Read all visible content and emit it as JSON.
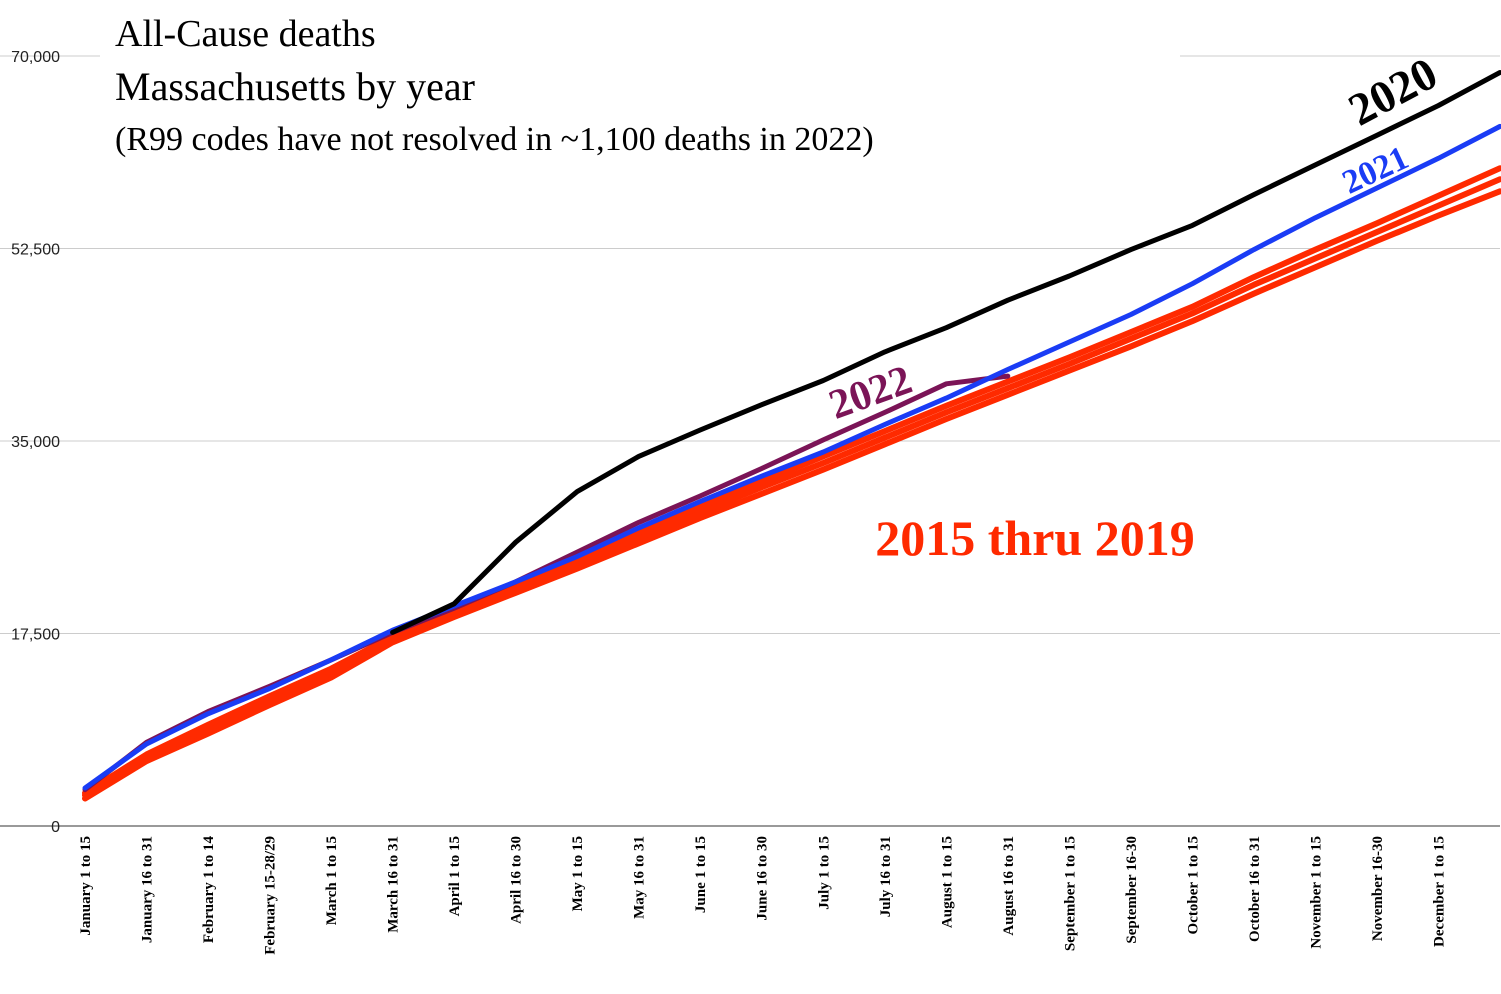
{
  "chart_data": {
    "type": "line",
    "title": "All-Cause deaths",
    "subtitle": "Massachusetts by year",
    "note": "(R99 codes have not resolved in ~1,100 deaths in 2022)",
    "annotation": "2015 thru 2019",
    "categories": [
      "January 1 to 15",
      "January 16 to 31",
      "February 1 to 14",
      "February 15-28/29",
      "March 1 to 15",
      "March 16 to 31",
      "April 1 to 15",
      "April 16 to 30",
      "May 1 to 15",
      "May 16 to 31",
      "June 1 to 15",
      "June 16 to 30",
      "July 1 to 15",
      "July 16 to 31",
      "August 1 to 15",
      "August 16 to 31",
      "September 1 to 15",
      "September 16-30",
      "October 1 to 15",
      "October 16 to 31",
      "November 1 to 15",
      "November 16-30",
      "December 1 to 15",
      null
    ],
    "ylim": [
      0,
      70000
    ],
    "yticks": [
      0,
      {
        "value": 17500,
        "label": "17,500"
      },
      {
        "value": 35000,
        "label": "35,000"
      },
      {
        "value": 52500,
        "label": "52,500"
      },
      {
        "value": 70000,
        "label": "70,000"
      }
    ],
    "grid": true,
    "series": [
      {
        "color": "#ff2a00",
        "values": [
          2500,
          5900,
          8400,
          11000,
          13500,
          16700,
          19000,
          21200,
          23400,
          25700,
          28000,
          30200,
          32400,
          34700,
          37000,
          39200,
          41400,
          43600,
          45900,
          48400,
          50800,
          53200,
          55500,
          57700
        ]
      },
      {
        "color": "#ff2a00",
        "values": [
          2800,
          6300,
          8800,
          11400,
          13900,
          17000,
          19400,
          21600,
          23900,
          26200,
          28500,
          30800,
          33000,
          35300,
          37600,
          39800,
          42000,
          44300,
          46600,
          49200,
          51600,
          54000,
          56400,
          58800
        ]
      },
      {
        "color": "#ff2a00",
        "values": [
          3000,
          6500,
          9200,
          11800,
          14300,
          17200,
          19700,
          22000,
          24300,
          26700,
          29000,
          31300,
          33600,
          35900,
          38200,
          40400,
          42600,
          44900,
          47200,
          49900,
          52400,
          54800,
          57300,
          59800
        ]
      },
      {
        "name": "2022",
        "color": "#7b1457",
        "values": [
          3300,
          7600,
          10400,
          12700,
          15100,
          17600,
          19800,
          22200,
          24900,
          27600,
          30000,
          32500,
          35100,
          37600,
          40200,
          40900,
          null,
          null,
          null,
          null,
          null,
          null,
          null,
          null
        ]
      },
      {
        "name": "2021",
        "color": "#1a3cf5",
        "values": [
          3450,
          7450,
          10200,
          12500,
          15100,
          17800,
          20000,
          22200,
          24500,
          27100,
          29500,
          31800,
          34000,
          36500,
          38900,
          41500,
          44000,
          46500,
          49300,
          52400,
          55300,
          58000,
          60700,
          63600
        ]
      },
      {
        "name": "2020",
        "color": "#000000",
        "values": [
          null,
          null,
          null,
          null,
          null,
          17600,
          20200,
          25800,
          30400,
          33600,
          36000,
          38300,
          40500,
          43100,
          45300,
          47800,
          50000,
          52400,
          54600,
          57400,
          60100,
          62800,
          65500,
          68500
        ]
      }
    ]
  }
}
